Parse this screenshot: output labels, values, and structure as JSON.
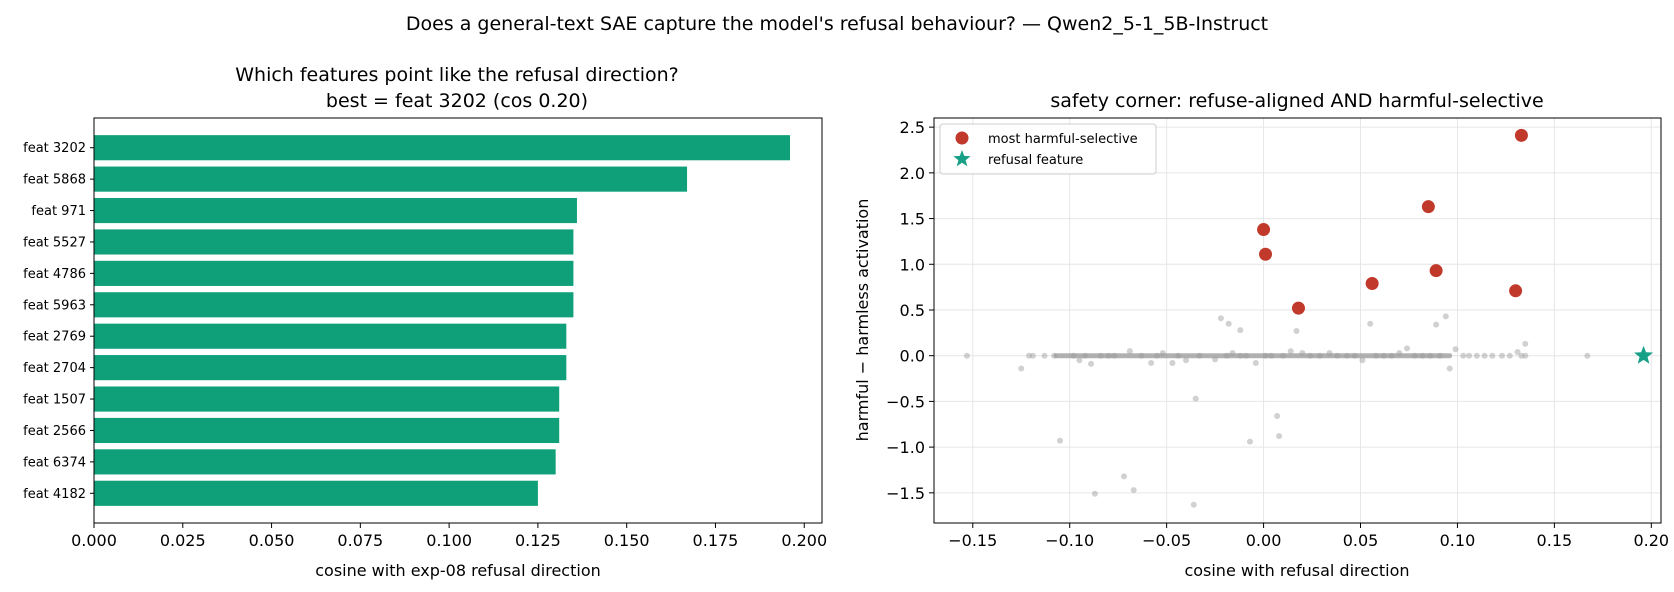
{
  "suptitle": "Does a general-text SAE capture the model's refusal behaviour? — Qwen2_5-1_5B-Instruct",
  "colors": {
    "bar": "#0fa07a",
    "harmful_selective": "#c0392b",
    "refusal_star": "#16a085",
    "background_points": "#999999",
    "grid": "#e6e6e6"
  },
  "chart_data": [
    {
      "type": "bar",
      "orientation": "horizontal",
      "title": "Which features point like the refusal direction?",
      "subtitle": "best = feat 3202 (cos 0.20)",
      "xlabel": "cosine with exp-08 refusal direction",
      "ylabel": "",
      "xlim": [
        0.0,
        0.205
      ],
      "xticks": [
        "0.000",
        "0.025",
        "0.050",
        "0.075",
        "0.100",
        "0.125",
        "0.150",
        "0.175",
        "0.200"
      ],
      "xtick_values": [
        0.0,
        0.025,
        0.05,
        0.075,
        0.1,
        0.125,
        0.15,
        0.175,
        0.2
      ],
      "grid": false,
      "categories": [
        "feat 3202",
        "feat 5868",
        "feat 971",
        "feat 5527",
        "feat 4786",
        "feat 5963",
        "feat 2769",
        "feat 2704",
        "feat 1507",
        "feat 2566",
        "feat 6374",
        "feat 4182"
      ],
      "values": [
        0.196,
        0.167,
        0.136,
        0.135,
        0.135,
        0.135,
        0.133,
        0.133,
        0.131,
        0.131,
        0.13,
        0.125
      ]
    },
    {
      "type": "scatter",
      "title": "safety corner: refuse-aligned AND harmful-selective",
      "xlabel": "cosine with refusal direction",
      "ylabel": "harmful − harmless activation",
      "xlim": [
        -0.17,
        0.205
      ],
      "ylim": [
        -1.83,
        2.6
      ],
      "xticks": [
        "−0.15",
        "−0.10",
        "−0.05",
        "0.00",
        "0.05",
        "0.10",
        "0.15",
        "0.20"
      ],
      "xtick_values": [
        -0.15,
        -0.1,
        -0.05,
        0.0,
        0.05,
        0.1,
        0.15,
        0.2
      ],
      "yticks": [
        "−1.5",
        "−1.0",
        "−0.5",
        "0.0",
        "0.5",
        "1.0",
        "1.5",
        "2.0",
        "2.5"
      ],
      "ytick_values": [
        -1.5,
        -1.0,
        -0.5,
        0.0,
        0.5,
        1.0,
        1.5,
        2.0,
        2.5
      ],
      "grid": true,
      "legend_position": "top-left",
      "series": [
        {
          "name": "",
          "role": "all features",
          "color": "#999999",
          "points": [
            [
              -0.153,
              0.0
            ],
            [
              -0.125,
              -0.14
            ],
            [
              -0.121,
              0.0
            ],
            [
              -0.119,
              0.0
            ],
            [
              -0.113,
              0.0
            ],
            [
              -0.108,
              0.0
            ],
            [
              -0.105,
              -0.93
            ],
            [
              -0.098,
              0.0
            ],
            [
              -0.095,
              -0.05
            ],
            [
              -0.092,
              0.0
            ],
            [
              -0.089,
              -0.09
            ],
            [
              -0.087,
              -1.51
            ],
            [
              -0.084,
              0.0
            ],
            [
              -0.08,
              0.0
            ],
            [
              -0.077,
              0.0
            ],
            [
              -0.072,
              -1.32
            ],
            [
              -0.069,
              0.05
            ],
            [
              -0.067,
              -1.47
            ],
            [
              -0.063,
              0.0
            ],
            [
              -0.058,
              -0.08
            ],
            [
              -0.055,
              0.0
            ],
            [
              -0.052,
              0.03
            ],
            [
              -0.047,
              -0.08
            ],
            [
              -0.044,
              0.0
            ],
            [
              -0.04,
              -0.05
            ],
            [
              -0.036,
              -1.63
            ],
            [
              -0.035,
              -0.47
            ],
            [
              -0.033,
              0.0
            ],
            [
              -0.025,
              -0.04
            ],
            [
              -0.022,
              0.41
            ],
            [
              -0.019,
              0.0
            ],
            [
              -0.016,
              0.03
            ],
            [
              -0.012,
              0.0
            ],
            [
              -0.009,
              0.0
            ],
            [
              -0.007,
              -0.94
            ],
            [
              -0.004,
              -0.08
            ],
            [
              -0.018,
              0.35
            ],
            [
              -0.012,
              0.28
            ],
            [
              0.001,
              0.0
            ],
            [
              0.004,
              0.0
            ],
            [
              0.007,
              -0.66
            ],
            [
              0.008,
              -0.88
            ],
            [
              0.01,
              0.0
            ],
            [
              0.014,
              0.05
            ],
            [
              0.017,
              0.27
            ],
            [
              0.02,
              0.03
            ],
            [
              0.024,
              0.0
            ],
            [
              0.029,
              0.0
            ],
            [
              0.034,
              0.03
            ],
            [
              0.038,
              0.0
            ],
            [
              0.043,
              0.0
            ],
            [
              0.047,
              0.0
            ],
            [
              0.051,
              -0.05
            ],
            [
              0.055,
              0.35
            ],
            [
              0.058,
              0.0
            ],
            [
              0.062,
              0.0
            ],
            [
              0.066,
              0.0
            ],
            [
              0.07,
              0.03
            ],
            [
              0.074,
              0.08
            ],
            [
              0.078,
              0.0
            ],
            [
              0.082,
              0.0
            ],
            [
              0.086,
              0.0
            ],
            [
              0.089,
              0.34
            ],
            [
              0.091,
              0.0
            ],
            [
              0.094,
              0.43
            ],
            [
              0.096,
              -0.14
            ],
            [
              0.099,
              0.07
            ],
            [
              0.103,
              0.0
            ],
            [
              0.106,
              0.0
            ],
            [
              0.11,
              0.0
            ],
            [
              0.114,
              0.0
            ],
            [
              0.118,
              0.0
            ],
            [
              0.123,
              0.0
            ],
            [
              0.127,
              0.0
            ],
            [
              0.131,
              0.04
            ],
            [
              0.135,
              0.0
            ],
            [
              0.135,
              0.13
            ],
            [
              0.133,
              0.0
            ],
            [
              0.167,
              0.0
            ]
          ],
          "dense_band": {
            "x_from": -0.107,
            "x_to": 0.096,
            "y": 0.0
          }
        },
        {
          "name": "most harmful-selective",
          "color": "#c0392b",
          "points": [
            [
              0.133,
              2.41
            ],
            [
              0.085,
              1.63
            ],
            [
              0.0,
              1.38
            ],
            [
              0.001,
              1.11
            ],
            [
              0.089,
              0.93
            ],
            [
              0.056,
              0.79
            ],
            [
              0.13,
              0.71
            ],
            [
              0.018,
              0.52
            ]
          ]
        },
        {
          "name": "refusal feature",
          "color": "#16a085",
          "points": [
            [
              0.196,
              0.0
            ]
          ]
        }
      ]
    }
  ]
}
